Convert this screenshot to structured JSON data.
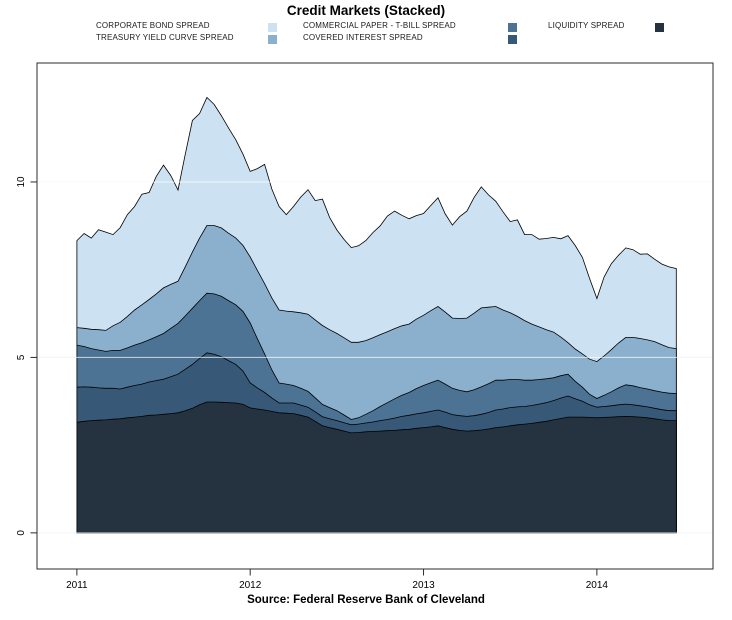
{
  "title": "Credit Markets (Stacked)",
  "source": "Source: Federal Reserve Bank of Cleveland",
  "legend": {
    "items": [
      {
        "label": "CORPORATE BOND SPREAD",
        "color_key": "corporate_bond"
      },
      {
        "label": "TREASURY YIELD CURVE SPREAD",
        "color_key": "treasury_yield"
      },
      {
        "label": "COMMERCIAL PAPER - T-BILL SPREAD",
        "color_key": "commercial_paper"
      },
      {
        "label": "COVERED INTEREST SPREAD",
        "color_key": "covered_interest"
      },
      {
        "label": "LIQUIDITY SPREAD",
        "color_key": "liquidity"
      }
    ]
  },
  "colors": {
    "corporate_bond": "#CCE1F1",
    "treasury_yield": "#8AB0CE",
    "commercial_paper": "#4C7294",
    "covered_interest": "#375977",
    "liquidity": "#24333F",
    "outline": "#000000",
    "frame": "#2B2B2B",
    "grid_under": "#E4E4E4",
    "grid_over": "rgba(255,255,255,0.72)"
  },
  "chart_data": {
    "type": "area",
    "stacked": true,
    "title": "Credit Markets (Stacked)",
    "xlabel": "",
    "ylabel": "",
    "x_start_year": 2011.0,
    "x_step_years": 0.0416667,
    "x_end_year": 2014.46,
    "xlim": [
      2010.77,
      2014.67
    ],
    "ylim": [
      -1.03,
      13.39
    ],
    "grid": true,
    "legend_position": "top",
    "x_ticks": [
      "2011",
      "2012",
      "2013",
      "2014"
    ],
    "x_tick_years": [
      2011,
      2012,
      2013,
      2014
    ],
    "y_ticks": [
      "0",
      "5",
      "10"
    ],
    "y_tick_values": [
      0,
      5,
      10
    ],
    "series": [
      {
        "name": "LIQUIDITY SPREAD",
        "color_key": "liquidity",
        "values": [
          3.15,
          3.18,
          3.2,
          3.21,
          3.22,
          3.24,
          3.25,
          3.28,
          3.3,
          3.32,
          3.35,
          3.36,
          3.38,
          3.4,
          3.42,
          3.48,
          3.55,
          3.65,
          3.73,
          3.73,
          3.72,
          3.71,
          3.7,
          3.66,
          3.56,
          3.53,
          3.5,
          3.46,
          3.42,
          3.41,
          3.4,
          3.35,
          3.3,
          3.18,
          3.05,
          3.0,
          2.95,
          2.9,
          2.85,
          2.86,
          2.88,
          2.89,
          2.9,
          2.91,
          2.92,
          2.94,
          2.95,
          2.98,
          3.0,
          3.02,
          3.05,
          3.0,
          2.95,
          2.92,
          2.9,
          2.91,
          2.93,
          2.96,
          3.0,
          3.02,
          3.05,
          3.08,
          3.1,
          3.12,
          3.15,
          3.18,
          3.22,
          3.26,
          3.3,
          3.3,
          3.3,
          3.29,
          3.28,
          3.29,
          3.3,
          3.31,
          3.32,
          3.31,
          3.3,
          3.28,
          3.25,
          3.22,
          3.2,
          3.2
        ]
      },
      {
        "name": "COVERED INTEREST SPREAD",
        "color_key": "covered_interest",
        "values": [
          1.0,
          0.98,
          0.95,
          0.92,
          0.9,
          0.88,
          0.85,
          0.87,
          0.9,
          0.92,
          0.95,
          0.98,
          1.0,
          1.05,
          1.1,
          1.18,
          1.25,
          1.32,
          1.4,
          1.36,
          1.3,
          1.2,
          1.1,
          0.95,
          0.71,
          0.6,
          0.5,
          0.38,
          0.28,
          0.29,
          0.3,
          0.29,
          0.28,
          0.27,
          0.26,
          0.25,
          0.25,
          0.24,
          0.23,
          0.24,
          0.25,
          0.27,
          0.3,
          0.32,
          0.35,
          0.38,
          0.4,
          0.41,
          0.42,
          0.44,
          0.45,
          0.44,
          0.42,
          0.42,
          0.42,
          0.43,
          0.45,
          0.47,
          0.5,
          0.51,
          0.52,
          0.51,
          0.5,
          0.51,
          0.52,
          0.53,
          0.55,
          0.58,
          0.6,
          0.52,
          0.45,
          0.36,
          0.3,
          0.31,
          0.32,
          0.34,
          0.35,
          0.34,
          0.32,
          0.31,
          0.3,
          0.29,
          0.28,
          0.28
        ]
      },
      {
        "name": "COMMERCIAL PAPER - T-BILL SPREAD",
        "color_key": "commercial_paper",
        "values": [
          1.2,
          1.15,
          1.1,
          1.08,
          1.05,
          1.08,
          1.1,
          1.12,
          1.15,
          1.18,
          1.2,
          1.25,
          1.3,
          1.38,
          1.45,
          1.52,
          1.6,
          1.65,
          1.7,
          1.72,
          1.72,
          1.71,
          1.7,
          1.7,
          1.71,
          1.4,
          1.1,
          0.8,
          0.57,
          0.54,
          0.5,
          0.48,
          0.45,
          0.4,
          0.35,
          0.32,
          0.28,
          0.22,
          0.15,
          0.18,
          0.25,
          0.32,
          0.4,
          0.48,
          0.55,
          0.6,
          0.65,
          0.72,
          0.78,
          0.82,
          0.85,
          0.8,
          0.75,
          0.72,
          0.7,
          0.74,
          0.78,
          0.82,
          0.85,
          0.82,
          0.8,
          0.78,
          0.75,
          0.72,
          0.7,
          0.68,
          0.65,
          0.64,
          0.62,
          0.5,
          0.4,
          0.3,
          0.25,
          0.32,
          0.4,
          0.48,
          0.55,
          0.54,
          0.52,
          0.51,
          0.5,
          0.5,
          0.5,
          0.49
        ]
      },
      {
        "name": "TREASURY YIELD CURVE SPREAD",
        "color_key": "treasury_yield",
        "values": [
          0.5,
          0.52,
          0.55,
          0.58,
          0.6,
          0.7,
          0.8,
          0.9,
          1.0,
          1.08,
          1.15,
          1.22,
          1.3,
          1.25,
          1.2,
          1.4,
          1.6,
          1.78,
          1.93,
          1.95,
          1.95,
          1.92,
          1.9,
          1.88,
          1.88,
          1.95,
          2.0,
          2.05,
          2.08,
          2.08,
          2.1,
          2.15,
          2.2,
          2.22,
          2.25,
          2.22,
          2.2,
          2.2,
          2.2,
          2.15,
          2.1,
          2.08,
          2.05,
          2.02,
          2.0,
          1.98,
          1.95,
          1.98,
          2.0,
          2.05,
          2.1,
          2.05,
          2.0,
          2.05,
          2.1,
          2.18,
          2.25,
          2.18,
          2.1,
          2.0,
          1.9,
          1.8,
          1.7,
          1.6,
          1.5,
          1.4,
          1.3,
          1.1,
          0.9,
          0.92,
          0.95,
          1.0,
          1.05,
          1.12,
          1.2,
          1.28,
          1.35,
          1.38,
          1.4,
          1.4,
          1.4,
          1.35,
          1.3,
          1.28
        ]
      },
      {
        "name": "CORPORATE BOND SPREAD",
        "color_key": "corporate_bond",
        "values": [
          2.48,
          2.7,
          2.6,
          2.85,
          2.8,
          2.6,
          2.7,
          2.9,
          2.95,
          3.15,
          3.05,
          3.35,
          3.5,
          3.1,
          2.6,
          3.2,
          3.75,
          3.55,
          3.65,
          3.45,
          3.2,
          3.0,
          2.8,
          2.6,
          2.44,
          2.9,
          3.4,
          3.1,
          2.95,
          2.75,
          3.0,
          3.3,
          3.55,
          3.4,
          3.6,
          3.2,
          2.95,
          2.8,
          2.7,
          2.75,
          2.85,
          3.0,
          3.1,
          3.3,
          3.35,
          3.15,
          3.0,
          2.95,
          2.9,
          3.0,
          3.1,
          2.8,
          2.65,
          2.9,
          3.05,
          3.3,
          3.45,
          3.2,
          3.0,
          2.8,
          2.6,
          2.75,
          2.45,
          2.55,
          2.5,
          2.6,
          2.7,
          2.8,
          3.05,
          2.95,
          2.75,
          2.3,
          1.8,
          2.25,
          2.45,
          2.5,
          2.55,
          2.5,
          2.4,
          2.45,
          2.35,
          2.3,
          2.3,
          2.28
        ]
      }
    ]
  }
}
